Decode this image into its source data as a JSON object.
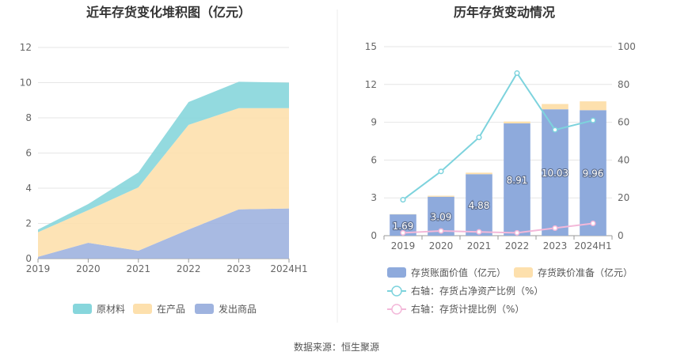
{
  "footer": {
    "source": "数据来源：恒生聚源"
  },
  "colors": {
    "raw": "#87d6dc",
    "wip": "#fde0ad",
    "goods": "#9fb3df",
    "book": "#8eaadc",
    "reserve": "#fde0ad",
    "ratio_asset": "#7dd3dd",
    "ratio_provision": "#f3b8d9",
    "grid": "#e6e6e6"
  },
  "chart_data": [
    {
      "type": "area",
      "title": "近年存货变化堆积图（亿元）",
      "categories": [
        "2019",
        "2020",
        "2021",
        "2022",
        "2023",
        "2024H1"
      ],
      "ylim": [
        0,
        12
      ],
      "yticks": [
        "0",
        "2",
        "4",
        "6",
        "8",
        "10",
        "12"
      ],
      "stacked": true,
      "grid": true,
      "legend_position": "bottom",
      "series": [
        {
          "name": "发出商品",
          "values": [
            0.1,
            0.9,
            0.45,
            1.65,
            2.8,
            2.85
          ]
        },
        {
          "name": "在产品",
          "values": [
            1.4,
            1.85,
            3.6,
            5.95,
            5.75,
            5.7
          ]
        },
        {
          "name": "原材料",
          "values": [
            0.15,
            0.35,
            0.85,
            1.3,
            1.5,
            1.45
          ]
        }
      ],
      "legend_order": [
        "原材料",
        "在产品",
        "发出商品"
      ]
    },
    {
      "type": "bar",
      "title": "历年存货变动情况",
      "categories": [
        "2019",
        "2020",
        "2021",
        "2022",
        "2023",
        "2024H1"
      ],
      "ylim": [
        0,
        15
      ],
      "yticks": [
        "0",
        "3",
        "6",
        "9",
        "12",
        "15"
      ],
      "y2lim": [
        0,
        100
      ],
      "y2ticks": [
        "0",
        "20",
        "40",
        "60",
        "80",
        "100"
      ],
      "grid": true,
      "legend_position": "bottom",
      "series": [
        {
          "name": "存货账面价值（亿元）",
          "axis": "left",
          "kind": "bar",
          "values": [
            1.69,
            3.09,
            4.88,
            8.91,
            10.03,
            9.96
          ],
          "labels": [
            "1.69",
            "3.09",
            "4.88",
            "8.91",
            "10.03",
            "9.96"
          ]
        },
        {
          "name": "存货跌价准备（亿元）",
          "axis": "left",
          "kind": "bar-stack",
          "values": [
            0.02,
            0.08,
            0.12,
            0.15,
            0.42,
            0.7
          ]
        },
        {
          "name": "右轴：存货占净资产比例（%）",
          "axis": "right",
          "kind": "line",
          "values": [
            19,
            34,
            52,
            86,
            56,
            61
          ]
        },
        {
          "name": "右轴：存货计提比例（%）",
          "axis": "right",
          "kind": "line",
          "values": [
            1.5,
            2.5,
            2,
            1.5,
            4,
            6.5
          ]
        }
      ]
    }
  ]
}
